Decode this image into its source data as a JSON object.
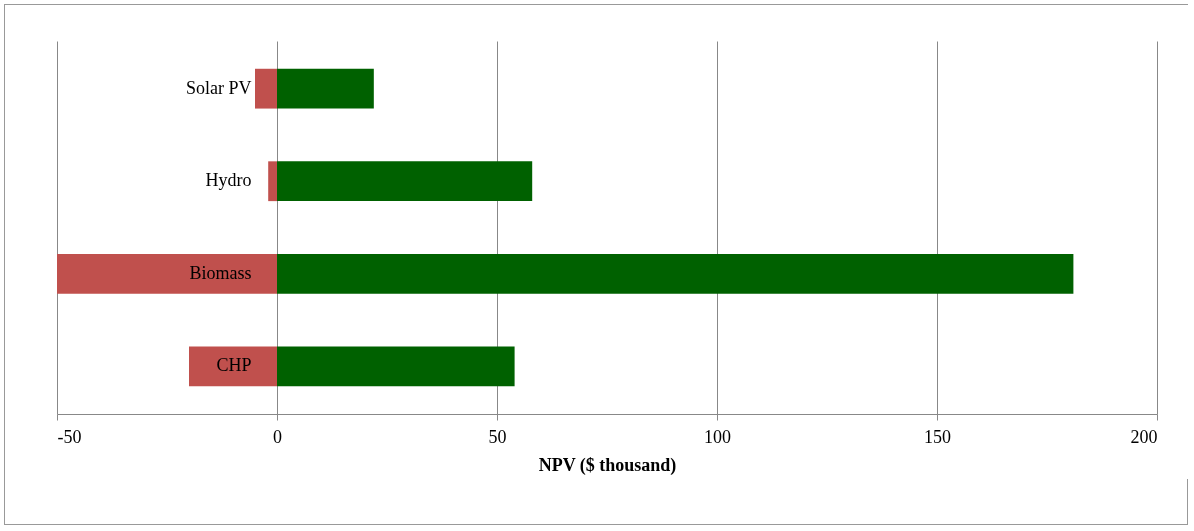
{
  "chart_data": {
    "type": "bar",
    "orientation": "horizontal",
    "xlabel": "NPV ($ thousand)",
    "categories": [
      "Solar PV",
      "Hydro",
      "Biomass",
      "CHP"
    ],
    "series": [
      {
        "color": "#c0504d",
        "values": [
          -5,
          -2,
          -50,
          -20
        ]
      },
      {
        "color": "#006100",
        "values": [
          22,
          58,
          181,
          54
        ]
      }
    ],
    "stacked": true,
    "xlim": [
      -50,
      200
    ],
    "xticks": [
      -50,
      0,
      50,
      100,
      150,
      200
    ],
    "grid": "x"
  }
}
